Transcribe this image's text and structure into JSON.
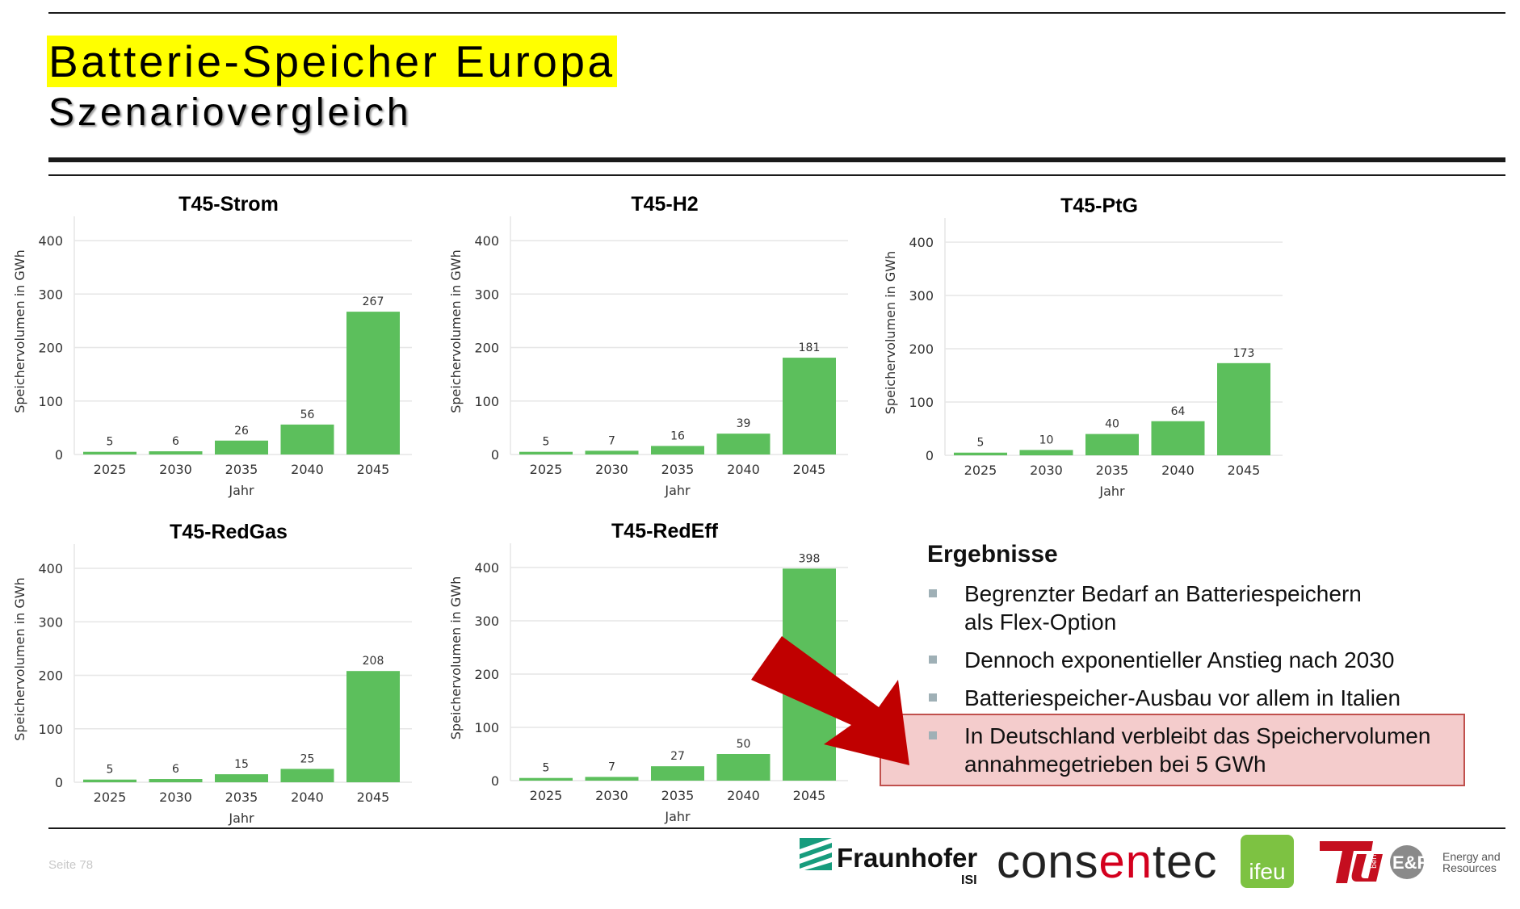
{
  "slide": {
    "title": "Batterie-Speicher Europa",
    "subtitle": "Szenariovergleich",
    "footer_page": "Seite 78"
  },
  "chart_data": [
    {
      "type": "bar",
      "title": "T45-Strom",
      "categories": [
        "2025",
        "2030",
        "2035",
        "2040",
        "2045"
      ],
      "values": [
        5,
        6,
        26,
        56,
        267
      ],
      "xlabel": "Jahr",
      "ylabel": "Speichervolumen in GWh",
      "ylim": [
        0,
        400
      ],
      "yticks": [
        0,
        100,
        200,
        300,
        400
      ],
      "bar_color": "#5cbf5c",
      "grid": true
    },
    {
      "type": "bar",
      "title": "T45-H2",
      "categories": [
        "2025",
        "2030",
        "2035",
        "2040",
        "2045"
      ],
      "values": [
        5,
        7,
        16,
        39,
        181
      ],
      "xlabel": "Jahr",
      "ylabel": "Speichervolumen in GWh",
      "ylim": [
        0,
        400
      ],
      "yticks": [
        0,
        100,
        200,
        300,
        400
      ],
      "bar_color": "#5cbf5c",
      "grid": true
    },
    {
      "type": "bar",
      "title": "T45-PtG",
      "categories": [
        "2025",
        "2030",
        "2035",
        "2040",
        "2045"
      ],
      "values": [
        5,
        10,
        40,
        64,
        173
      ],
      "xlabel": "Jahr",
      "ylabel": "Speichervolumen in GWh",
      "ylim": [
        0,
        400
      ],
      "yticks": [
        0,
        100,
        200,
        300,
        400
      ],
      "bar_color": "#5cbf5c",
      "grid": true
    },
    {
      "type": "bar",
      "title": "T45-RedGas",
      "categories": [
        "2025",
        "2030",
        "2035",
        "2040",
        "2045"
      ],
      "values": [
        5,
        6,
        15,
        25,
        208
      ],
      "xlabel": "Jahr",
      "ylabel": "Speichervolumen in GWh",
      "ylim": [
        0,
        400
      ],
      "yticks": [
        0,
        100,
        200,
        300,
        400
      ],
      "bar_color": "#5cbf5c",
      "grid": true
    },
    {
      "type": "bar",
      "title": "T45-RedEff",
      "categories": [
        "2025",
        "2030",
        "2035",
        "2040",
        "2045"
      ],
      "values": [
        5,
        7,
        27,
        50,
        398
      ],
      "xlabel": "Jahr",
      "ylabel": "Speichervolumen in GWh",
      "ylim": [
        0,
        400
      ],
      "yticks": [
        0,
        100,
        200,
        300,
        400
      ],
      "bar_color": "#5cbf5c",
      "grid": true
    }
  ],
  "results": {
    "heading": "Ergebnisse",
    "bullets": [
      [
        "Begrenzter Bedarf an Batteriespeichern",
        "als Flex-Option"
      ],
      [
        "Dennoch exponentieller Anstieg nach 2030"
      ],
      [
        "Batteriespeicher-Ausbau vor allem in Italien"
      ],
      [
        "In Deutschland verbleibt das Speichervolumen",
        "annahmegetrieben bei 5 GWh"
      ]
    ],
    "highlight_color": "#f4cccc",
    "arrow_color": "#c00000"
  },
  "logos": {
    "fraunhofer": "Fraunhofer",
    "fraunhofer_sub": "ISI",
    "consentec_pre": "cons",
    "consentec_mid": "en",
    "consentec_post": "tec",
    "ifeu": "ifeu",
    "tu_sub": "berlin",
    "er_mark": "E&R",
    "er_line1": "Energy and",
    "er_line2": "Resources"
  }
}
